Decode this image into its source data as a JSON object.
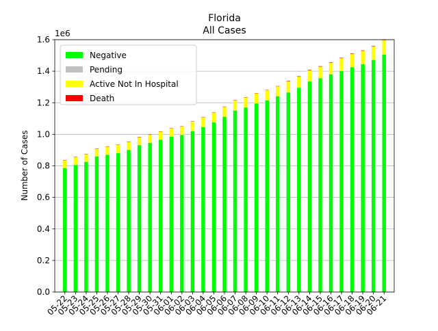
{
  "chart_data": {
    "type": "bar",
    "stacked": true,
    "title": "Florida",
    "subtitle": "All Cases",
    "xlabel": "",
    "ylabel": "Number of Cases",
    "y_offset_label": "1e6",
    "ylim": [
      0,
      1.6
    ],
    "yticks": [
      "0.0",
      "0.2",
      "0.4",
      "0.6",
      "0.8",
      "1.0",
      "1.2",
      "1.4",
      "1.6"
    ],
    "grid": "y",
    "legend_position": "top-left",
    "categories": [
      "05-22",
      "05-23",
      "05-24",
      "05-25",
      "05-26",
      "05-27",
      "05-28",
      "05-29",
      "05-30",
      "05-31",
      "06-01",
      "06-02",
      "06-03",
      "06-04",
      "06-05",
      "06-06",
      "06-07",
      "06-08",
      "06-09",
      "06-10",
      "06-11",
      "06-12",
      "06-13",
      "06-14",
      "06-15",
      "06-16",
      "06-17",
      "06-18",
      "06-19",
      "06-20",
      "06-21"
    ],
    "series": [
      {
        "name": "Negative",
        "color": "#00ff00",
        "values": [
          0.785,
          0.805,
          0.825,
          0.86,
          0.87,
          0.88,
          0.9,
          0.93,
          0.945,
          0.965,
          0.985,
          0.995,
          1.02,
          1.045,
          1.075,
          1.11,
          1.15,
          1.17,
          1.195,
          1.215,
          1.24,
          1.265,
          1.295,
          1.335,
          1.355,
          1.38,
          1.4,
          1.425,
          1.445,
          1.47,
          1.505
        ]
      },
      {
        "name": "Pending",
        "color": "#c0c0c0",
        "values": [
          0.002,
          0.002,
          0.002,
          0.002,
          0.002,
          0.002,
          0.002,
          0.002,
          0.002,
          0.002,
          0.002,
          0.002,
          0.002,
          0.002,
          0.002,
          0.002,
          0.002,
          0.002,
          0.002,
          0.002,
          0.002,
          0.002,
          0.002,
          0.002,
          0.002,
          0.002,
          0.002,
          0.002,
          0.002,
          0.002,
          0.002
        ]
      },
      {
        "name": "Active Not In Hospital",
        "color": "#ffff00",
        "values": [
          0.048,
          0.048,
          0.046,
          0.046,
          0.05,
          0.05,
          0.05,
          0.05,
          0.05,
          0.05,
          0.05,
          0.052,
          0.058,
          0.06,
          0.06,
          0.062,
          0.062,
          0.062,
          0.062,
          0.062,
          0.062,
          0.068,
          0.068,
          0.068,
          0.072,
          0.072,
          0.08,
          0.082,
          0.082,
          0.085,
          0.09
        ]
      },
      {
        "name": "Death",
        "color": "#ff0000",
        "values": [
          0.002,
          0.002,
          0.002,
          0.002,
          0.002,
          0.002,
          0.002,
          0.002,
          0.002,
          0.002,
          0.002,
          0.002,
          0.002,
          0.002,
          0.002,
          0.002,
          0.002,
          0.002,
          0.002,
          0.002,
          0.002,
          0.003,
          0.003,
          0.003,
          0.003,
          0.003,
          0.003,
          0.003,
          0.003,
          0.003,
          0.003
        ]
      }
    ]
  }
}
